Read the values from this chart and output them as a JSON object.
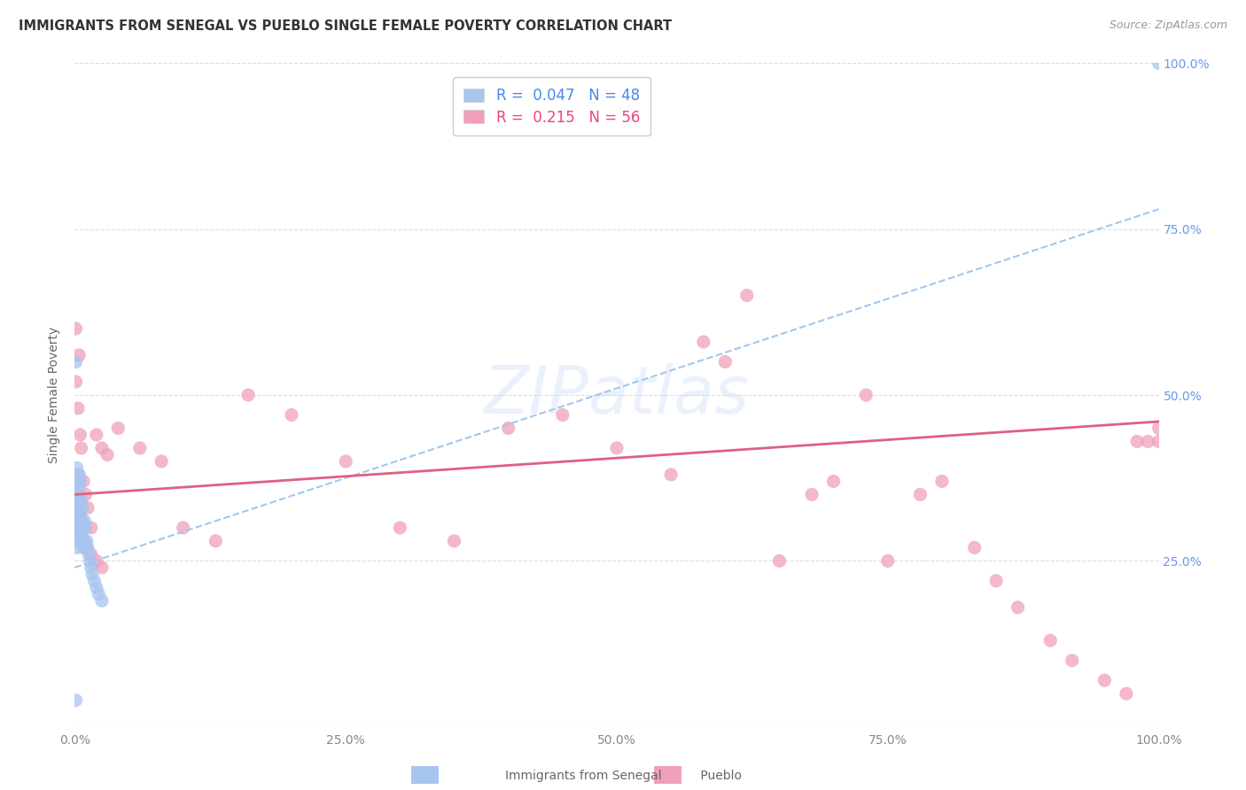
{
  "title": "IMMIGRANTS FROM SENEGAL VS PUEBLO SINGLE FEMALE POVERTY CORRELATION CHART",
  "source": "Source: ZipAtlas.com",
  "ylabel": "Single Female Poverty",
  "series1_label": "Immigrants from Senegal",
  "series1_R": 0.047,
  "series1_N": 48,
  "series1_color": "#a8c4f0",
  "series1_trend_color": "#a0c8f0",
  "series2_label": "Pueblo",
  "series2_R": 0.215,
  "series2_N": 56,
  "series2_color": "#f0a0b8",
  "series2_trend_color": "#e06080",
  "xlim": [
    0,
    1.0
  ],
  "ylim": [
    0,
    1.0
  ],
  "xticks": [
    0.0,
    0.25,
    0.5,
    0.75,
    1.0
  ],
  "xtick_labels": [
    "0.0%",
    "25.0%",
    "50.0%",
    "75.0%",
    "100.0%"
  ],
  "ytick_labels_right": [
    "",
    "25.0%",
    "50.0%",
    "75.0%",
    "100.0%"
  ],
  "ytick_vals": [
    0.0,
    0.25,
    0.5,
    0.75,
    1.0
  ],
  "watermark": "ZIPatlas",
  "background_color": "#ffffff",
  "grid_color": "#dddddd",
  "title_color": "#333333",
  "source_color": "#999999",
  "axis_label_color": "#666666",
  "tick_label_color_blue": "#6699ee",
  "legend_R_color_blue": "#4488ee",
  "legend_R_color_pink": "#ee4477",
  "legend_N_color_blue": "#4488ee",
  "legend_N_color_pink": "#ee4477",
  "series1_x": [
    0.001,
    0.001,
    0.001,
    0.001,
    0.001,
    0.002,
    0.002,
    0.002,
    0.002,
    0.002,
    0.002,
    0.003,
    0.003,
    0.003,
    0.003,
    0.003,
    0.004,
    0.004,
    0.004,
    0.004,
    0.004,
    0.005,
    0.005,
    0.005,
    0.005,
    0.006,
    0.006,
    0.006,
    0.007,
    0.007,
    0.007,
    0.008,
    0.008,
    0.009,
    0.009,
    0.01,
    0.01,
    0.011,
    0.012,
    0.013,
    0.014,
    0.015,
    0.016,
    0.018,
    0.02,
    0.022,
    0.025,
    1.0
  ],
  "series1_y": [
    0.04,
    0.28,
    0.3,
    0.32,
    0.55,
    0.27,
    0.3,
    0.33,
    0.35,
    0.37,
    0.39,
    0.28,
    0.31,
    0.33,
    0.35,
    0.38,
    0.29,
    0.31,
    0.33,
    0.36,
    0.38,
    0.3,
    0.32,
    0.34,
    0.37,
    0.29,
    0.31,
    0.34,
    0.28,
    0.31,
    0.33,
    0.27,
    0.3,
    0.28,
    0.31,
    0.27,
    0.3,
    0.28,
    0.27,
    0.26,
    0.25,
    0.24,
    0.23,
    0.22,
    0.21,
    0.2,
    0.19,
    1.0
  ],
  "series2_x": [
    0.001,
    0.001,
    0.003,
    0.004,
    0.005,
    0.006,
    0.008,
    0.01,
    0.012,
    0.015,
    0.02,
    0.025,
    0.03,
    0.04,
    0.06,
    0.08,
    0.1,
    0.13,
    0.16,
    0.2,
    0.25,
    0.3,
    0.35,
    0.4,
    0.45,
    0.5,
    0.55,
    0.58,
    0.6,
    0.62,
    0.65,
    0.68,
    0.7,
    0.73,
    0.75,
    0.78,
    0.8,
    0.83,
    0.85,
    0.87,
    0.9,
    0.92,
    0.95,
    0.97,
    0.98,
    0.99,
    1.0,
    1.0,
    0.002,
    0.003,
    0.004,
    0.006,
    0.01,
    0.015,
    0.02,
    0.025
  ],
  "series2_y": [
    0.6,
    0.52,
    0.48,
    0.56,
    0.44,
    0.42,
    0.37,
    0.35,
    0.33,
    0.3,
    0.44,
    0.42,
    0.41,
    0.45,
    0.42,
    0.4,
    0.3,
    0.28,
    0.5,
    0.47,
    0.4,
    0.3,
    0.28,
    0.45,
    0.47,
    0.42,
    0.38,
    0.58,
    0.55,
    0.65,
    0.25,
    0.35,
    0.37,
    0.5,
    0.25,
    0.35,
    0.37,
    0.27,
    0.22,
    0.18,
    0.13,
    0.1,
    0.07,
    0.05,
    0.43,
    0.43,
    0.45,
    0.43,
    0.35,
    0.33,
    0.32,
    0.3,
    0.27,
    0.26,
    0.25,
    0.24
  ]
}
